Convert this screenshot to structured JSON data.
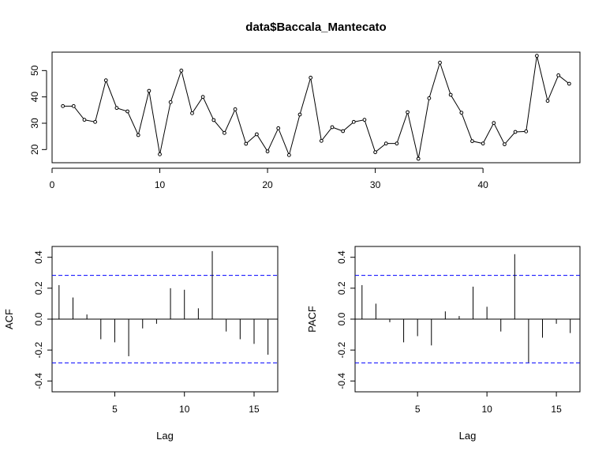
{
  "chart_data": [
    {
      "type": "line",
      "title": "data$Baccala_Mantecato",
      "xlabel": "",
      "ylabel": "",
      "x": [
        1,
        2,
        3,
        4,
        5,
        6,
        7,
        8,
        9,
        10,
        11,
        12,
        13,
        14,
        15,
        16,
        17,
        18,
        19,
        20,
        21,
        22,
        23,
        24,
        25,
        26,
        27,
        28,
        29,
        30,
        31,
        32,
        33,
        34,
        35,
        36,
        37,
        38,
        39,
        40,
        41,
        42,
        43,
        44,
        45,
        46,
        47,
        48
      ],
      "values": [
        36.5,
        36.5,
        31.3,
        30.5,
        46.3,
        35.8,
        34.5,
        25.5,
        42.3,
        18.2,
        38.0,
        50.0,
        33.8,
        40.0,
        31.2,
        26.3,
        35.3,
        22.2,
        25.8,
        19.3,
        28.1,
        17.9,
        33.3,
        47.3,
        23.3,
        28.5,
        27.0,
        30.5,
        31.3,
        19.0,
        22.3,
        22.3,
        34.2,
        16.5,
        39.5,
        53.0,
        40.8,
        34.0,
        23.2,
        22.3,
        30.1,
        22.0,
        26.7,
        26.9,
        55.6,
        38.5,
        48.2,
        45.0
      ],
      "xlim": [
        0,
        49
      ],
      "ylim": [
        15,
        57
      ],
      "x_ticks": [
        "0",
        "10",
        "20",
        "30",
        "40"
      ],
      "y_ticks": [
        "20",
        "30",
        "40",
        "50"
      ],
      "point_style": "open-circle",
      "grid": false
    },
    {
      "type": "bar",
      "title": "",
      "xlabel": "Lag",
      "ylabel": "ACF",
      "lags": [
        1,
        2,
        3,
        4,
        5,
        6,
        7,
        8,
        9,
        10,
        11,
        12,
        13,
        14,
        15,
        16
      ],
      "values": [
        0.22,
        0.14,
        0.03,
        -0.13,
        -0.15,
        -0.24,
        -0.06,
        -0.03,
        0.2,
        0.19,
        0.07,
        0.44,
        -0.08,
        -0.13,
        -0.16,
        -0.23
      ],
      "confidence_bound": 0.283,
      "xlim": [
        0.5,
        16.7
      ],
      "ylim": [
        -0.47,
        0.47
      ],
      "x_ticks": [
        "5",
        "10",
        "15"
      ],
      "y_ticks": [
        "-0.4",
        "-0.2",
        "0.0",
        "0.2",
        "0.4"
      ],
      "bound_color": "#0000ff",
      "grid": false
    },
    {
      "type": "bar",
      "title": "",
      "xlabel": "Lag",
      "ylabel": "PACF",
      "lags": [
        1,
        2,
        3,
        4,
        5,
        6,
        7,
        8,
        9,
        10,
        11,
        12,
        13,
        14,
        15,
        16
      ],
      "values": [
        0.22,
        0.1,
        -0.02,
        -0.15,
        -0.11,
        -0.17,
        0.05,
        0.02,
        0.21,
        0.08,
        -0.08,
        0.42,
        -0.28,
        -0.12,
        -0.03,
        -0.09
      ],
      "confidence_bound": 0.283,
      "xlim": [
        0.5,
        16.7
      ],
      "ylim": [
        -0.47,
        0.47
      ],
      "x_ticks": [
        "5",
        "10",
        "15"
      ],
      "y_ticks": [
        "-0.4",
        "-0.2",
        "0.0",
        "0.2",
        "0.4"
      ],
      "bound_color": "#0000ff",
      "grid": false
    }
  ]
}
